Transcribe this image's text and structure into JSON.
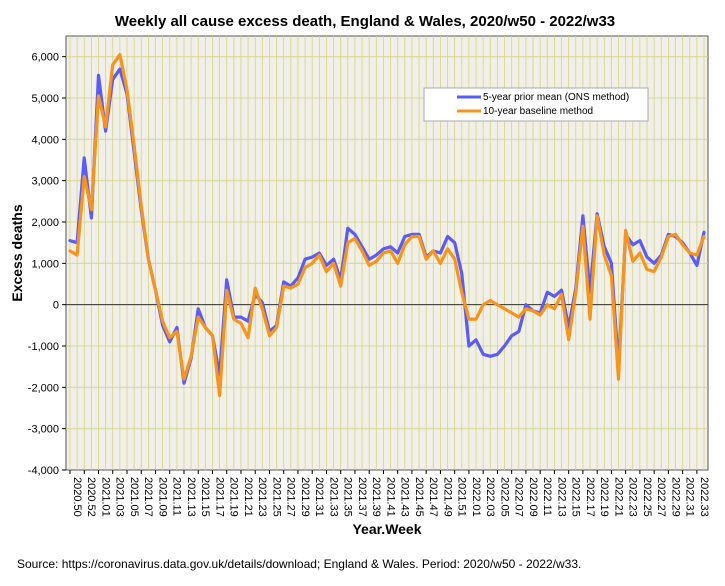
{
  "chart_data": {
    "type": "line",
    "title": "Weekly all cause excess death, England & Wales, 2020/w50 - 2022/w33",
    "xlabel": "Year.Week",
    "ylabel": "Excess deaths",
    "ylim": [
      -4000,
      6500
    ],
    "yticks": [
      -4000,
      -3000,
      -2000,
      -1000,
      0,
      1000,
      2000,
      3000,
      4000,
      5000,
      6000
    ],
    "ytick_labels": [
      "-4,000",
      "-3,000",
      "-2,000",
      "-1,000",
      "0",
      "1,000",
      "2,000",
      "3,000",
      "4,000",
      "5,000",
      "6,000"
    ],
    "grid": true,
    "legend_position": "top-right",
    "reference_line": 0,
    "x_tick_labels": [
      "2020.50",
      "2020.52",
      "2021.01",
      "2021.03",
      "2021.05",
      "2021.07",
      "2021.09",
      "2021.11",
      "2021.13",
      "2021.15",
      "2021.17",
      "2021.19",
      "2021.21",
      "2021.23",
      "2021.25",
      "2021.27",
      "2021.29",
      "2021.31",
      "2021.33",
      "2021.35",
      "2021.37",
      "2021.39",
      "2021.41",
      "2021.43",
      "2021.45",
      "2021.47",
      "2021.49",
      "2021.51",
      "2022.01",
      "2022.03",
      "2022.05",
      "2022.07",
      "2022.09",
      "2022.11",
      "2022.13",
      "2022.15",
      "2022.17",
      "2022.19",
      "2022.21",
      "2022.23",
      "2022.25",
      "2022.27",
      "2022.29",
      "2022.31",
      "2022.33"
    ],
    "series": [
      {
        "name": "5-year prior mean (ONS method)",
        "color": "#5b5bf5",
        "values": [
          1550,
          1500,
          3550,
          2100,
          5550,
          4200,
          5450,
          5700,
          5100,
          3700,
          2300,
          1100,
          350,
          -500,
          -900,
          -550,
          -1900,
          -1300,
          -100,
          -550,
          -750,
          -1700,
          600,
          -300,
          -300,
          -400,
          250,
          50,
          -650,
          -500,
          550,
          450,
          650,
          1100,
          1150,
          1250,
          950,
          1100,
          600,
          1850,
          1700,
          1400,
          1100,
          1200,
          1350,
          1400,
          1250,
          1650,
          1700,
          1700,
          1150,
          1300,
          1250,
          1650,
          1500,
          750,
          -1000,
          -850,
          -1200,
          -1250,
          -1200,
          -1000,
          -750,
          -650,
          0,
          -150,
          -200,
          300,
          200,
          350,
          -550,
          400,
          2150,
          300,
          2200,
          1400,
          1000,
          -1500,
          1700,
          1450,
          1550,
          1150,
          1000,
          1200,
          1700,
          1650,
          1500,
          1250,
          950,
          1750
        ]
      },
      {
        "name": "10-year baseline method",
        "color": "#f7941d",
        "values": [
          1300,
          1200,
          3100,
          2300,
          5050,
          4300,
          5800,
          6050,
          5200,
          3850,
          2400,
          1100,
          350,
          -400,
          -800,
          -650,
          -1800,
          -1250,
          -300,
          -550,
          -750,
          -2200,
          350,
          -350,
          -450,
          -800,
          400,
          -100,
          -750,
          -550,
          450,
          400,
          500,
          900,
          1000,
          1200,
          800,
          1000,
          450,
          1500,
          1600,
          1300,
          950,
          1050,
          1250,
          1300,
          1000,
          1450,
          1650,
          1650,
          1100,
          1300,
          1000,
          1350,
          1100,
          300,
          -350,
          -350,
          0,
          100,
          0,
          -100,
          -200,
          -300,
          -100,
          -150,
          -250,
          0,
          -100,
          250,
          -850,
          300,
          1900,
          -350,
          2150,
          1200,
          700,
          -1800,
          1800,
          1050,
          1250,
          850,
          800,
          1150,
          1650,
          1700,
          1450,
          1250,
          1200,
          1650
        ]
      }
    ],
    "source_note": "Source: https://coronavirus.data.gov.uk/details/download; England & Wales. Period: 2020/w50 - 2022/w33."
  }
}
